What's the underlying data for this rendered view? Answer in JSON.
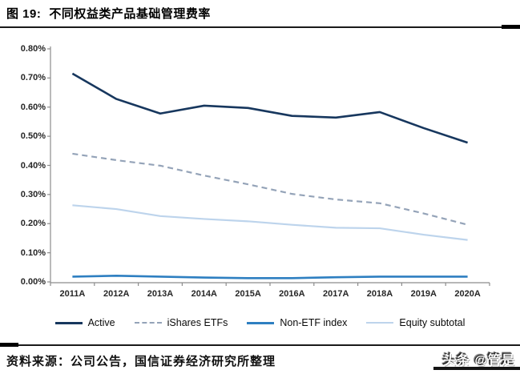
{
  "title": {
    "prefix": "图 19:",
    "text": "不同权益类产品基础管理费率"
  },
  "chart_data": {
    "type": "line",
    "categories": [
      "2011A",
      "2012A",
      "2013A",
      "2014A",
      "2015A",
      "2016A",
      "2017A",
      "2018A",
      "2019A",
      "2020A"
    ],
    "series": [
      {
        "name": "Active",
        "values": [
          0.715,
          0.628,
          0.578,
          0.605,
          0.597,
          0.57,
          0.564,
          0.583,
          0.528,
          0.478
        ],
        "color": "#17375E",
        "dash": "none",
        "width": 2.6
      },
      {
        "name": "iShares ETFs",
        "values": [
          0.44,
          0.418,
          0.399,
          0.365,
          0.335,
          0.302,
          0.283,
          0.27,
          0.235,
          0.196
        ],
        "color": "#94A3B8",
        "dash": "7 5",
        "width": 2.2
      },
      {
        "name": "Non-ETF index",
        "values": [
          0.018,
          0.021,
          0.018,
          0.015,
          0.013,
          0.013,
          0.016,
          0.018,
          0.018,
          0.018
        ],
        "color": "#2E7FC1",
        "dash": "none",
        "width": 2.6
      },
      {
        "name": "Equity subtotal",
        "values": [
          0.263,
          0.25,
          0.226,
          0.216,
          0.208,
          0.196,
          0.186,
          0.184,
          0.162,
          0.144
        ],
        "color": "#BDD4EC",
        "dash": "none",
        "width": 2.2
      }
    ],
    "y_ticks": [
      "0.80%",
      "0.70%",
      "0.60%",
      "0.50%",
      "0.40%",
      "0.30%",
      "0.20%",
      "0.10%",
      "0.00%"
    ],
    "ylim": [
      0,
      0.8
    ],
    "xlabel": "",
    "ylabel": "",
    "grid": false,
    "legend_position": "bottom",
    "axis_color": "#8c8c8c"
  },
  "source": {
    "text": "资料来源：公司公告，国信证券经济研究所整理"
  },
  "watermark": {
    "text": "头条 @管是"
  }
}
